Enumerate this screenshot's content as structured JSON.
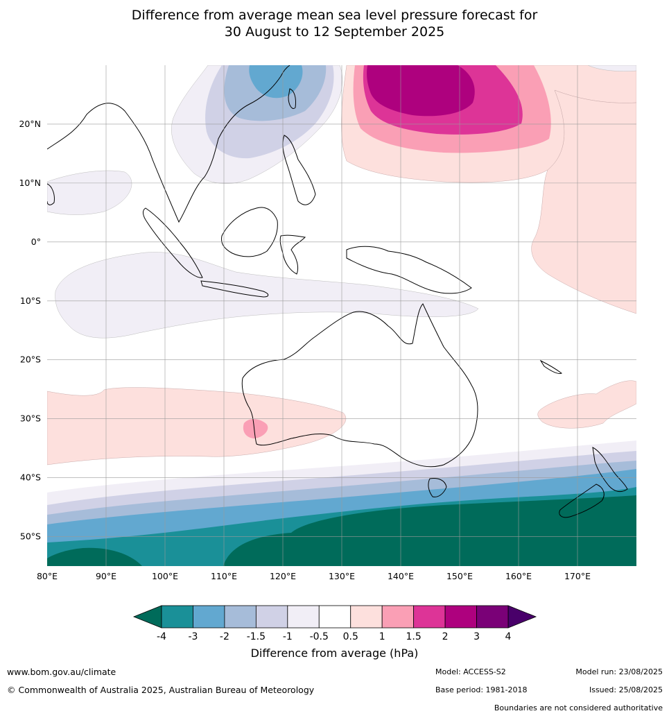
{
  "title": {
    "line1": "Difference from average mean sea level pressure forecast for",
    "line2": "30 August to 12 September 2025"
  },
  "map": {
    "lon_range": [
      80,
      180
    ],
    "lat_range": [
      -55,
      30
    ],
    "lat_ticks": [
      {
        "value": 20,
        "label": "20°N"
      },
      {
        "value": 10,
        "label": "10°N"
      },
      {
        "value": 0,
        "label": "0°"
      },
      {
        "value": -10,
        "label": "10°S"
      },
      {
        "value": -20,
        "label": "20°S"
      },
      {
        "value": -30,
        "label": "30°S"
      },
      {
        "value": -40,
        "label": "40°S"
      },
      {
        "value": -50,
        "label": "50°S"
      }
    ],
    "lon_ticks": [
      {
        "value": 80,
        "label": "80°E"
      },
      {
        "value": 90,
        "label": "90°E"
      },
      {
        "value": 100,
        "label": "100°E"
      },
      {
        "value": 110,
        "label": "110°E"
      },
      {
        "value": 120,
        "label": "120°E"
      },
      {
        "value": 130,
        "label": "130°E"
      },
      {
        "value": 140,
        "label": "140°E"
      },
      {
        "value": 150,
        "label": "150°E"
      },
      {
        "value": 160,
        "label": "160°E"
      },
      {
        "value": 170,
        "label": "170°E"
      }
    ],
    "grid": true
  },
  "colorbar": {
    "title": "Difference from average (hPa)",
    "ticks": [
      "-4",
      "-3",
      "-2",
      "-1.5",
      "-1",
      "-0.5",
      "0.5",
      "1",
      "1.5",
      "2",
      "3",
      "4"
    ],
    "colors": {
      "below_-4": "#006b5a",
      "-4_-3": "#1a9098",
      "-3_-2": "#62a8d0",
      "-2_-1.5": "#a6bcd9",
      "-1.5_-1": "#d0d1e6",
      "-1_-0.5": "#f1eef6",
      "-0.5_0.5": "#ffffff",
      "0.5_1": "#fde0dd",
      "1_1.5": "#fa9fb5",
      "1.5_2": "#dd3497",
      "2_3": "#ae017e",
      "3_4": "#7a0177",
      "above_4": "#49006a"
    }
  },
  "footer": {
    "website": "www.bom.gov.au/climate",
    "copyright": "© Commonwealth of Australia 2025, Australian Bureau of Meteorology",
    "model": "Model: ACCESS-S2",
    "base_period": "Base period: 1981-2018",
    "model_run": "Model run: 23/08/2025",
    "issued": "Issued: 25/08/2025",
    "disclaimer": "Boundaries are not considered authoritative"
  }
}
